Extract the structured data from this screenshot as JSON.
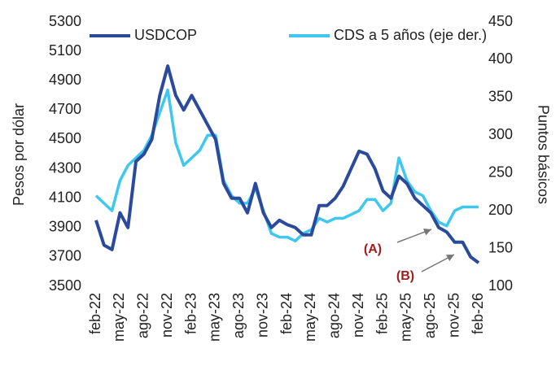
{
  "chart_data": {
    "type": "line",
    "categories": [
      "feb-22",
      null,
      null,
      "may-22",
      null,
      null,
      "ago-22",
      null,
      null,
      "nov-22",
      null,
      null,
      "feb-23",
      null,
      null,
      "may-23",
      null,
      null,
      "ago-23",
      null,
      null,
      "nov-23",
      null,
      null,
      "feb-24",
      null,
      null,
      "may-24",
      null,
      null,
      "ago-24",
      null,
      null,
      "nov-24",
      null,
      null,
      "feb-25",
      null,
      null,
      "may-25",
      null,
      null,
      "ago-25",
      null,
      null,
      "nov-25",
      null,
      null,
      "feb-26"
    ],
    "series": [
      {
        "name": "USDCOP",
        "color": "#2b4a9c",
        "values": [
          3950,
          3780,
          3750,
          4000,
          3900,
          4350,
          4400,
          4500,
          4800,
          5000,
          4800,
          4700,
          4800,
          4700,
          4600,
          4500,
          4200,
          4100,
          4100,
          4000,
          4200,
          4000,
          3900,
          3950,
          3920,
          3900,
          3850,
          3850,
          4050,
          4050,
          4100,
          4180,
          4300,
          4420,
          4400,
          4300,
          4150,
          4100,
          4250,
          4200,
          4100,
          4050,
          4000,
          3900,
          3870,
          3800,
          3800,
          3700,
          3660
        ]
      },
      {
        "name": "CDS a 5 años (eje der.)",
        "color": "#3fc8ef",
        "axis": "y2",
        "values": [
          220,
          210,
          200,
          240,
          260,
          270,
          280,
          300,
          330,
          360,
          290,
          260,
          270,
          280,
          300,
          300,
          240,
          220,
          210,
          210,
          230,
          200,
          170,
          165,
          165,
          160,
          170,
          175,
          190,
          185,
          190,
          190,
          195,
          200,
          215,
          215,
          200,
          210,
          270,
          240,
          225,
          220,
          200,
          185,
          180,
          200,
          205,
          205,
          205
        ]
      }
    ],
    "ylabel": "Pesos por dólar",
    "y2label": "Puntos básicos",
    "ylim": [
      3500,
      5300
    ],
    "yticks": [
      3500,
      3700,
      3900,
      4100,
      4300,
      4500,
      4700,
      4900,
      5100,
      5300
    ],
    "y2lim": [
      100,
      450
    ],
    "y2ticks": [
      100,
      150,
      200,
      250,
      300,
      350,
      400,
      450
    ],
    "annotations": [
      "(A)",
      "(B)"
    ],
    "legend": "top",
    "grid": false
  }
}
